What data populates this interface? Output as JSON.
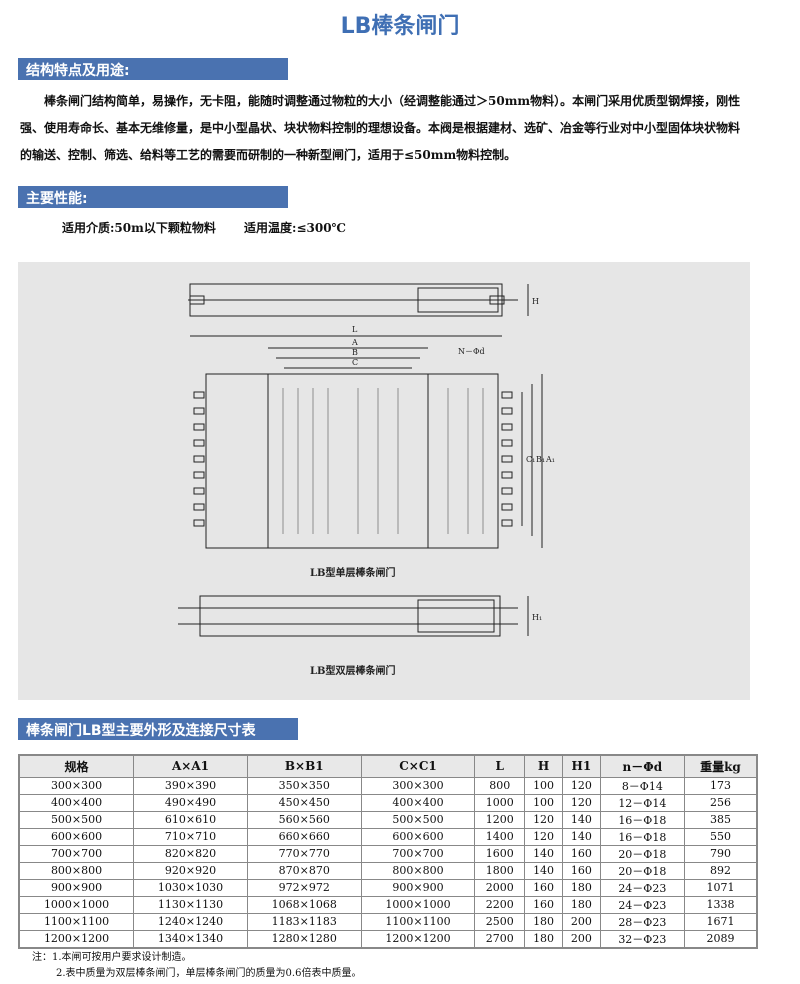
{
  "title": "LB棒条闸门",
  "sections": {
    "structure": "结构特点及用途:",
    "performance": "主要性能:",
    "table": "棒条闸门LB型主要外形及连接尺寸表"
  },
  "description": "棒条闸门结构简单，易操作，无卡阻，能随时调整通过物粒的大小（经调整能通过＞50mm物料）。本闸门采用优质型钢焊接，刚性强、使用寿命长、基本无维修量，是中小型晶状、块状物料控制的理想设备。本阀是根据建材、选矿、冶金等行业对中小型固体块状物料的输送、控制、筛选、给料等工艺的需要而研制的一种新型闸门，适用于≤50mm物料控制。",
  "performance": {
    "medium": "适用介质:50m以下颗粒物料",
    "temperature": "适用温度:≤300℃"
  },
  "drawing": {
    "labels": {
      "L": "L",
      "A": "A",
      "B": "B",
      "C": "C",
      "nd": "N－Φd",
      "H": "H",
      "C1": "C₁",
      "B1": "B₁",
      "A1": "A₁",
      "H1": "H₁"
    },
    "caption_single": "LB型单层棒条闸门",
    "caption_double": "LB型双层棒条闸门"
  },
  "table": {
    "headers": [
      "规格",
      "A×A1",
      "B×B1",
      "C×C1",
      "L",
      "H",
      "H1",
      "n－Φd",
      "重量kg"
    ],
    "rows": [
      [
        "300×300",
        "390×390",
        "350×350",
        "300×300",
        "800",
        "100",
        "120",
        "8－Φ14",
        "173"
      ],
      [
        "400×400",
        "490×490",
        "450×450",
        "400×400",
        "1000",
        "100",
        "120",
        "12－Φ14",
        "256"
      ],
      [
        "500×500",
        "610×610",
        "560×560",
        "500×500",
        "1200",
        "120",
        "140",
        "16－Φ18",
        "385"
      ],
      [
        "600×600",
        "710×710",
        "660×660",
        "600×600",
        "1400",
        "120",
        "140",
        "16－Φ18",
        "550"
      ],
      [
        "700×700",
        "820×820",
        "770×770",
        "700×700",
        "1600",
        "140",
        "160",
        "20－Φ18",
        "790"
      ],
      [
        "800×800",
        "920×920",
        "870×870",
        "800×800",
        "1800",
        "140",
        "160",
        "20－Φ18",
        "892"
      ],
      [
        "900×900",
        "1030×1030",
        "972×972",
        "900×900",
        "2000",
        "160",
        "180",
        "24－Φ23",
        "1071"
      ],
      [
        "1000×1000",
        "1130×1130",
        "1068×1068",
        "1000×1000",
        "2200",
        "160",
        "180",
        "24－Φ23",
        "1338"
      ],
      [
        "1100×1100",
        "1240×1240",
        "1183×1183",
        "1100×1100",
        "2500",
        "180",
        "200",
        "28－Φ23",
        "1671"
      ],
      [
        "1200×1200",
        "1340×1340",
        "1280×1280",
        "1200×1200",
        "2700",
        "180",
        "200",
        "32－Φ23",
        "2089"
      ]
    ]
  },
  "notes": [
    "注：1.本闸可按用户要求设计制造。",
    "2.表中质量为双层棒条闸门，单层棒条闸门的质量为0.6倍表中质量。"
  ]
}
